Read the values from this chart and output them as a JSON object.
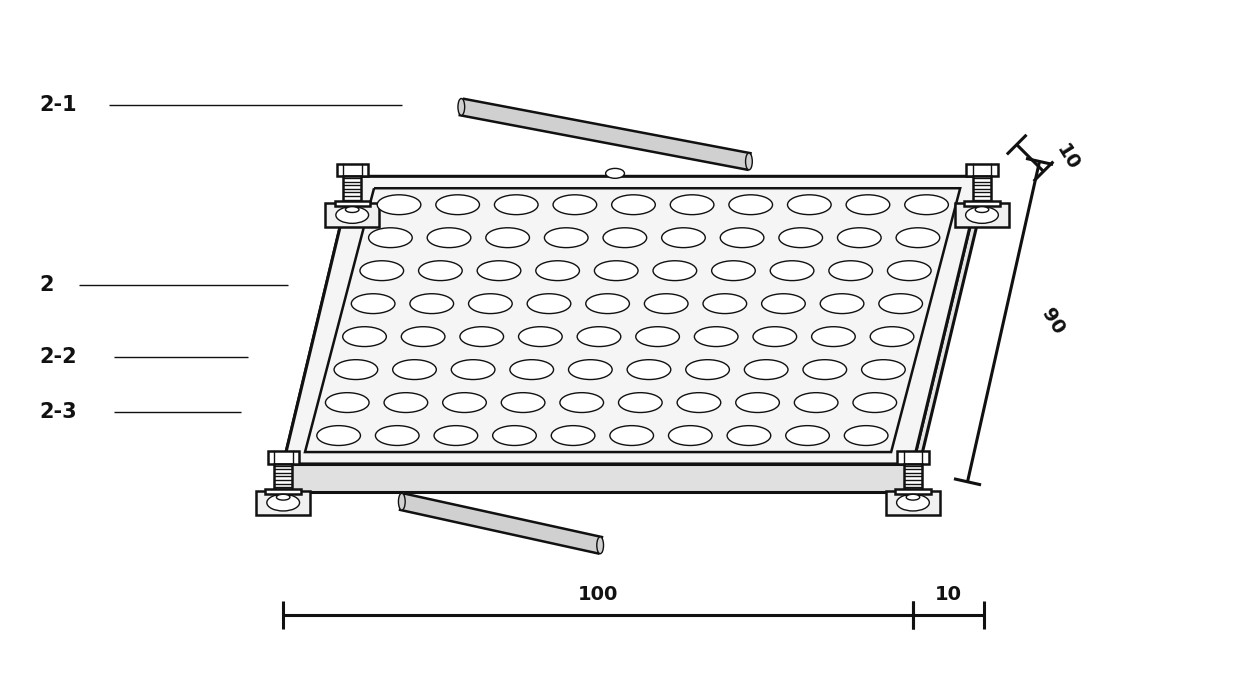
{
  "bg_color": "#ffffff",
  "line_color": "#111111",
  "lw": 1.8,
  "lw_thick": 2.2,
  "lw_thin": 1.0,
  "fig_width": 12.39,
  "fig_height": 6.75,
  "labels": {
    "label_21": "2-1",
    "label_2": "2",
    "label_22": "2-2",
    "label_23": "2-3",
    "dim_10_right": "10",
    "dim_90": "90",
    "dim_100": "100",
    "dim_10_bottom": "10"
  },
  "n_cols": 10,
  "n_rows": 8
}
